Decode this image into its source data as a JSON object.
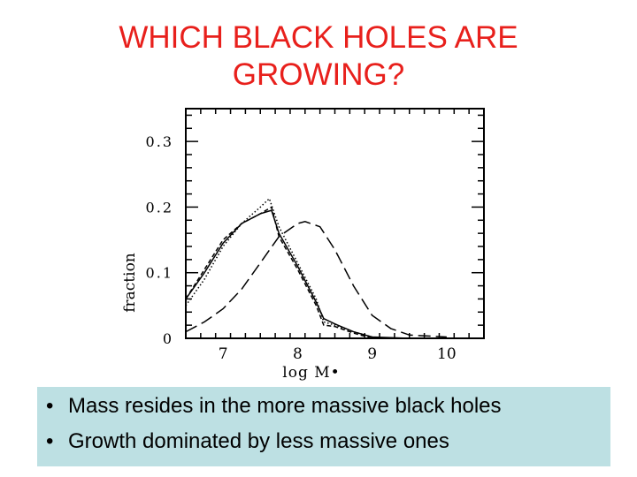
{
  "slide": {
    "title_lines": [
      "WHICH BLACK HOLES ARE",
      "GROWING?"
    ],
    "bullets": [
      "Mass resides in the more massive black holes",
      "Growth dominated by less massive ones"
    ],
    "colors": {
      "title": "#e8201c",
      "bullet_box": "#bde0e3"
    }
  },
  "chart_data": {
    "type": "line",
    "title": "",
    "xlabel": "log M•",
    "ylabel": "fraction",
    "xlim": [
      6.5,
      10.5
    ],
    "ylim": [
      0,
      0.35
    ],
    "xticks": [
      7,
      8,
      9,
      10
    ],
    "xtick_labels": [
      "7",
      "8",
      "9",
      "10"
    ],
    "yticks": [
      0,
      0.1,
      0.2,
      0.3
    ],
    "ytick_labels": [
      "0",
      "0.1",
      "0.2",
      "0.3"
    ],
    "grid": false,
    "series": [
      {
        "style": "solid",
        "x": [
          6.5,
          6.75,
          7.0,
          7.25,
          7.5,
          7.65,
          7.75,
          8.0,
          8.25,
          8.35,
          8.5,
          8.75,
          9.0,
          9.5
        ],
        "y": [
          0.06,
          0.1,
          0.145,
          0.175,
          0.19,
          0.195,
          0.16,
          0.11,
          0.055,
          0.03,
          0.022,
          0.01,
          0.002,
          0
        ]
      },
      {
        "style": "dotted",
        "x": [
          6.5,
          6.75,
          7.0,
          7.25,
          7.5,
          7.62,
          7.75,
          8.0,
          8.25,
          8.35,
          8.5,
          8.75,
          9.0
        ],
        "y": [
          0.05,
          0.09,
          0.14,
          0.175,
          0.2,
          0.213,
          0.17,
          0.115,
          0.06,
          0.025,
          0.02,
          0.01,
          0.002
        ]
      },
      {
        "style": "short-dash",
        "x": [
          6.5,
          6.75,
          7.0,
          7.25,
          7.5,
          7.65,
          7.75,
          8.0,
          8.25,
          8.35,
          8.5,
          8.75,
          9.0
        ],
        "y": [
          0.06,
          0.105,
          0.15,
          0.175,
          0.19,
          0.2,
          0.155,
          0.105,
          0.05,
          0.02,
          0.018,
          0.008,
          0
        ]
      },
      {
        "style": "long-dash",
        "x": [
          6.5,
          6.75,
          7.0,
          7.25,
          7.5,
          7.75,
          8.0,
          8.1,
          8.3,
          8.5,
          8.75,
          9.0,
          9.25,
          9.5,
          10.0
        ],
        "y": [
          0.01,
          0.025,
          0.045,
          0.075,
          0.115,
          0.155,
          0.175,
          0.178,
          0.17,
          0.135,
          0.08,
          0.035,
          0.015,
          0.005,
          0.002
        ]
      }
    ]
  }
}
